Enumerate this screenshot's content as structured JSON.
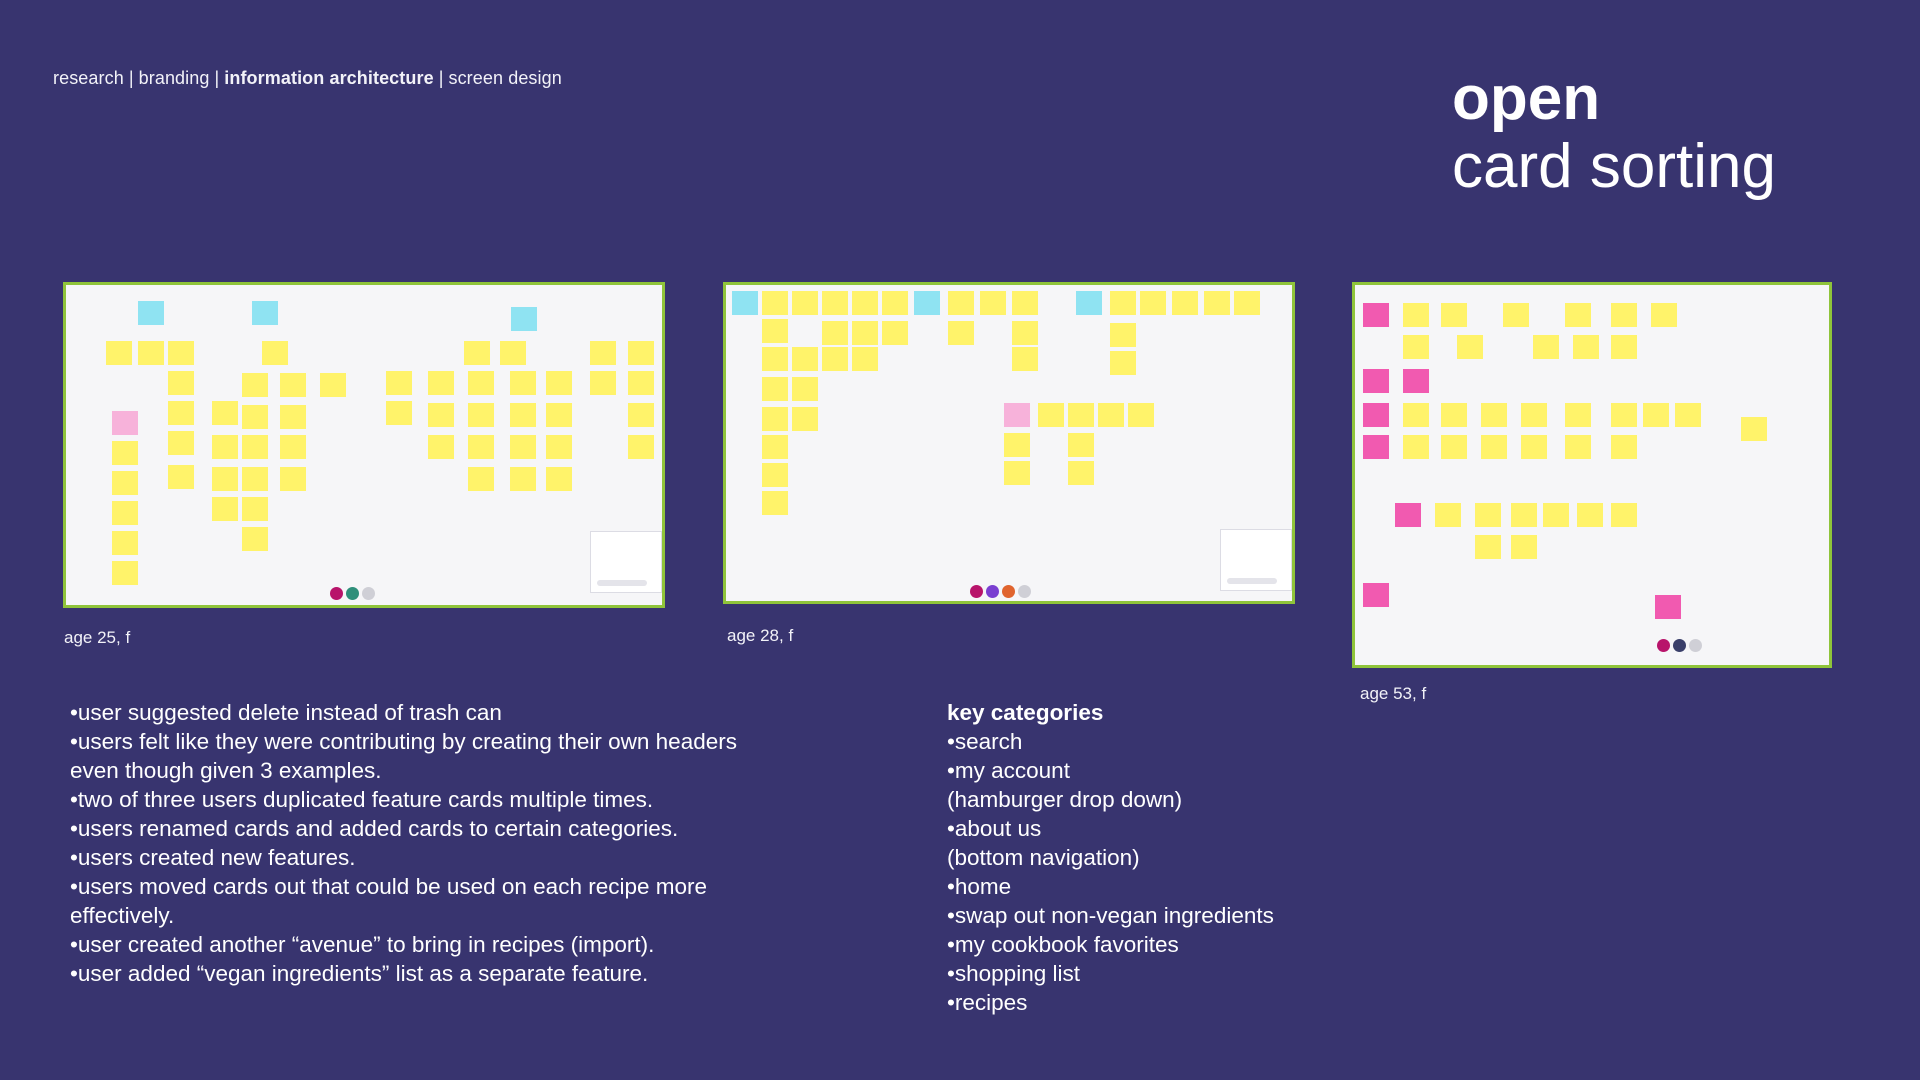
{
  "nav": {
    "items": [
      "research",
      "branding",
      "information architecture",
      "screen design"
    ],
    "active": "information architecture",
    "separator": "|"
  },
  "hero": {
    "line1": "open",
    "line2": "card sorting"
  },
  "boards": [
    {
      "caption": "age 25, f"
    },
    {
      "caption": "age 28, f"
    },
    {
      "caption": "age 53, f"
    }
  ],
  "colors": {
    "background": "#38346f",
    "board_border": "#8fc43a",
    "sticky_yellow": "#fff36a",
    "sticky_cyan": "#8fe3f2",
    "sticky_pink": "#f7b2da",
    "sticky_magenta": "#f15ab0"
  },
  "notes": [
    "user suggested delete instead of trash can",
    "users felt like they were contributing by creating their own headers even though given 3 examples.",
    "two of three users duplicated feature cards multiple times.",
    "users renamed cards and added cards to certain categories.",
    "users created new features.",
    "users moved cards out that could be used on each recipe more effectively.",
    "user created another “avenue” to bring in recipes (import).",
    "user added “vegan ingredients” list as a separate feature."
  ],
  "key_categories": {
    "title": "key categories",
    "items": [
      "search",
      "my account",
      "(hamburger drop down)",
      "about us",
      "(bottom navigation)",
      "home",
      "swap out non-vegan ingredients",
      "my cookbook favorites",
      "shopping list",
      "recipes"
    ]
  }
}
